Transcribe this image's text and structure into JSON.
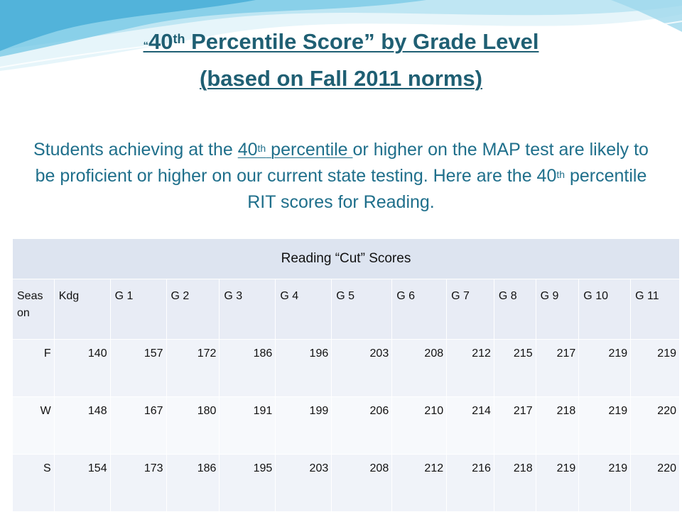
{
  "title": {
    "open_quote": "“",
    "number": "40",
    "ordinal": "th",
    "rest": " Percentile Score” by Grade Level",
    "line2": "(based on Fall 2011 norms)"
  },
  "subtitle": {
    "part1": "Students achieving at the ",
    "link_number": "40",
    "link_ordinal": "th",
    "link_text": " percentile ",
    "part2": "or higher on the MAP test are likely to be proficient  or higher on our current state testing.  Here are the 40",
    "part2_ordinal": "th",
    "part3": " percentile RIT scores for Reading."
  },
  "table": {
    "caption": "Reading “Cut” Scores",
    "headers": [
      "Seas on",
      "Kdg",
      "G 1",
      "G 2",
      "G 3",
      "G 4",
      "G 5",
      "G 6",
      "G 7",
      "G 8",
      "G 9",
      "G 10",
      "G 11"
    ],
    "rows": [
      [
        "F",
        "140",
        "157",
        "172",
        "186",
        "196",
        "203",
        "208",
        "212",
        "215",
        "217",
        "219",
        "219"
      ],
      [
        "W",
        "148",
        "167",
        "180",
        "191",
        "199",
        "206",
        "210",
        "214",
        "217",
        "218",
        "219",
        "220"
      ],
      [
        "S",
        "154",
        "173",
        "186",
        "195",
        "203",
        "208",
        "212",
        "216",
        "218",
        "219",
        "219",
        "220"
      ]
    ]
  },
  "colors": {
    "title": "#1f5f73",
    "subtitle": "#1f6f8b",
    "wave_light": "#d8f0f8",
    "wave_mid": "#9fd8ec",
    "wave_dark": "#4fb6d9"
  }
}
